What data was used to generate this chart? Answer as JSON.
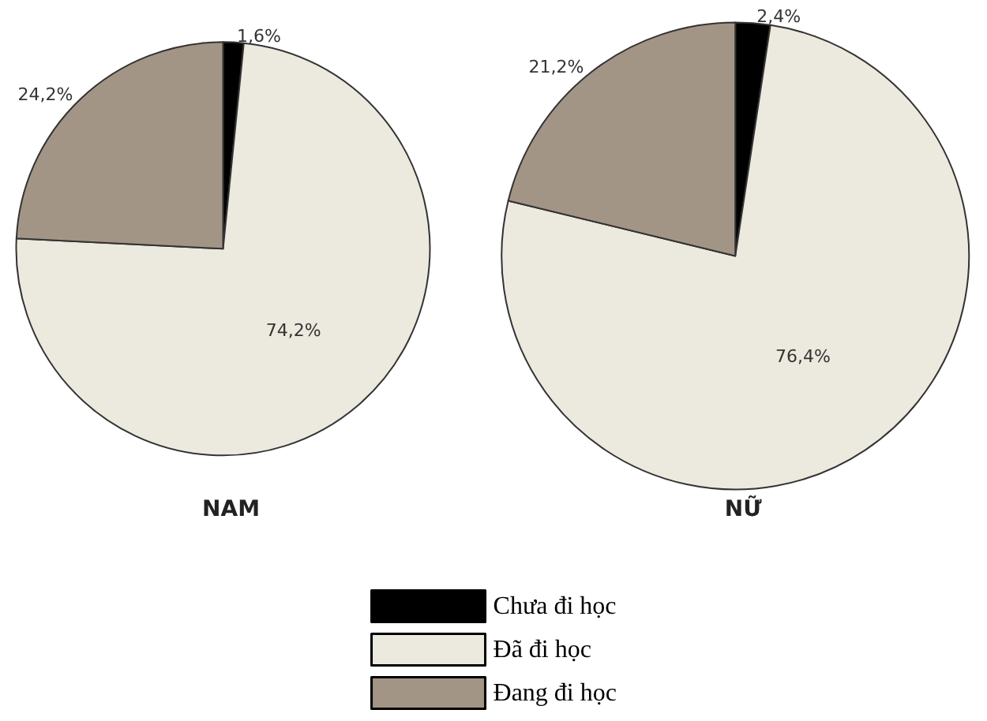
{
  "chart_data": {
    "type": "pie",
    "categories": [
      "Chưa đi học",
      "Đã đi học",
      "Đang đi học"
    ],
    "colors": [
      "#000000",
      "#ece9df",
      "#a39585"
    ],
    "series": [
      {
        "name": "NAM",
        "values": [
          1.6,
          74.2,
          24.2
        ],
        "value_labels": [
          "1,6%",
          "74,2%",
          "24,2%"
        ]
      },
      {
        "name": "NỮ",
        "values": [
          2.4,
          76.4,
          21.2
        ],
        "value_labels": [
          "2,4%",
          "76,4%",
          "21,2%"
        ]
      }
    ],
    "legend": "bottom"
  }
}
